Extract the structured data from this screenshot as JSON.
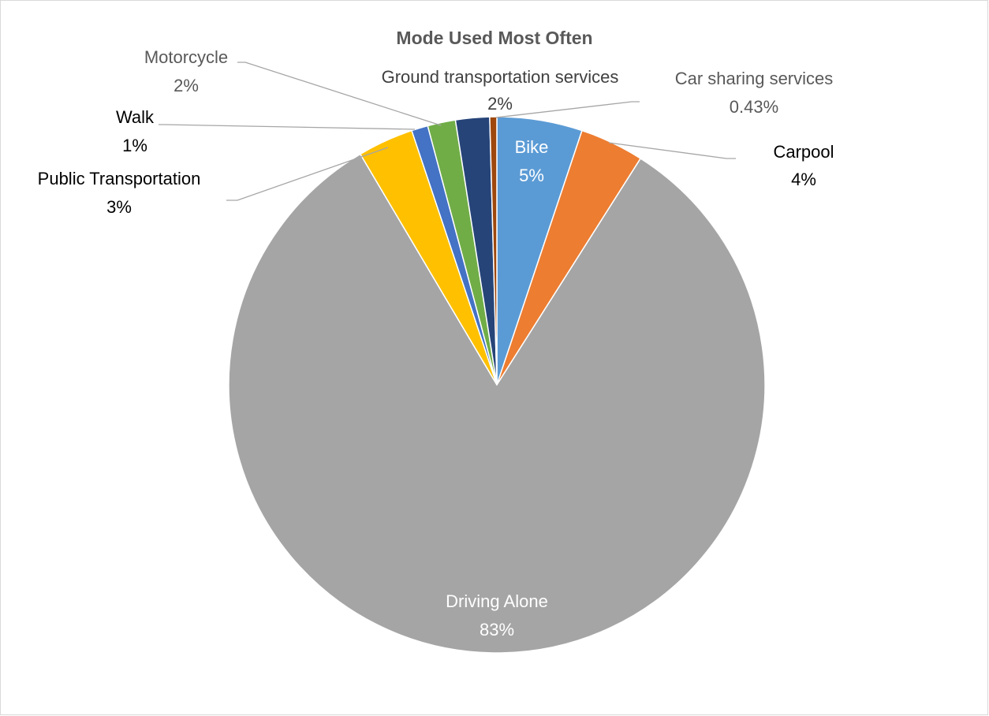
{
  "chart_data": {
    "type": "pie",
    "title": "Mode Used Most Often",
    "start_angle_deg": 0,
    "direction": "clockwise",
    "slices": [
      {
        "name": "Bike",
        "value": 5.2,
        "label": "5%",
        "color": "#5b9bd5",
        "label_color": "#ffffff",
        "leader": false
      },
      {
        "name": "Carpool",
        "value": 3.9,
        "label": "4%",
        "color": "#ed7d31",
        "label_color": "#000000",
        "leader": true
      },
      {
        "name": "Driving Alone",
        "value": 83.4,
        "label": "83%",
        "color": "#a5a5a5",
        "label_color": "#ffffff",
        "leader": false
      },
      {
        "name": "Public Transportation",
        "value": 3.4,
        "label": "3%",
        "color": "#ffc000",
        "label_color": "#000000",
        "leader": true
      },
      {
        "name": "Walk",
        "value": 1.0,
        "label": "1%",
        "color": "#4472c4",
        "label_color": "#000000",
        "leader": true
      },
      {
        "name": "Motorcycle",
        "value": 1.7,
        "label": "2%",
        "color": "#70ad47",
        "label_color": "#595959",
        "leader": true
      },
      {
        "name": "Ground transportation services",
        "value": 2.07,
        "label": "2%",
        "color": "#264478",
        "label_color": "#404040",
        "leader": true
      },
      {
        "name": "Car sharing services",
        "value": 0.43,
        "label": "0.43%",
        "color": "#9e480e",
        "label_color": "#595959",
        "leader": true
      }
    ]
  }
}
